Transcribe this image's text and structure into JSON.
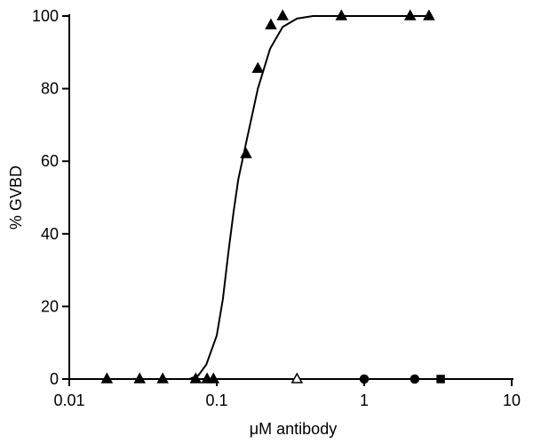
{
  "chart_data": {
    "type": "scatter",
    "xlabel": "μM antibody",
    "ylabel": "% GVBD",
    "xscale": "log",
    "xlim": [
      0.01,
      10
    ],
    "xticks": [
      0.01,
      0.1,
      1,
      10
    ],
    "ylim": [
      0,
      100
    ],
    "yticks": [
      0,
      20,
      40,
      60,
      80,
      100
    ],
    "series": [
      {
        "marker": "triangle",
        "filled": true,
        "color": "#000000",
        "x": [
          0.018,
          0.03,
          0.043,
          0.072,
          0.086,
          0.095,
          0.158,
          0.19,
          0.233,
          0.28,
          0.7,
          2.05,
          2.75
        ],
        "values": [
          0,
          0,
          0,
          0,
          0,
          0,
          62,
          85.5,
          97.5,
          100,
          100,
          100,
          100
        ]
      },
      {
        "marker": "triangle",
        "filled": false,
        "color": "#000000",
        "x": [
          0.35
        ],
        "values": [
          0
        ]
      },
      {
        "marker": "circle",
        "filled": true,
        "color": "#000000",
        "x": [
          1,
          2.2
        ],
        "values": [
          0,
          0
        ]
      },
      {
        "marker": "square",
        "filled": true,
        "color": "#000000",
        "x": [
          3.3
        ],
        "values": [
          0
        ]
      },
      {
        "marker": "line",
        "color": "#000000",
        "x": [
          0.065,
          0.075,
          0.085,
          0.1,
          0.11,
          0.12,
          0.13,
          0.14,
          0.16,
          0.19,
          0.23,
          0.28,
          0.35,
          0.45,
          0.7,
          1,
          2,
          2.8
        ],
        "values": [
          0,
          1,
          4,
          12,
          22,
          35,
          46,
          55,
          66,
          80,
          91,
          97,
          99.3,
          100,
          100,
          100,
          100,
          100
        ]
      }
    ]
  }
}
